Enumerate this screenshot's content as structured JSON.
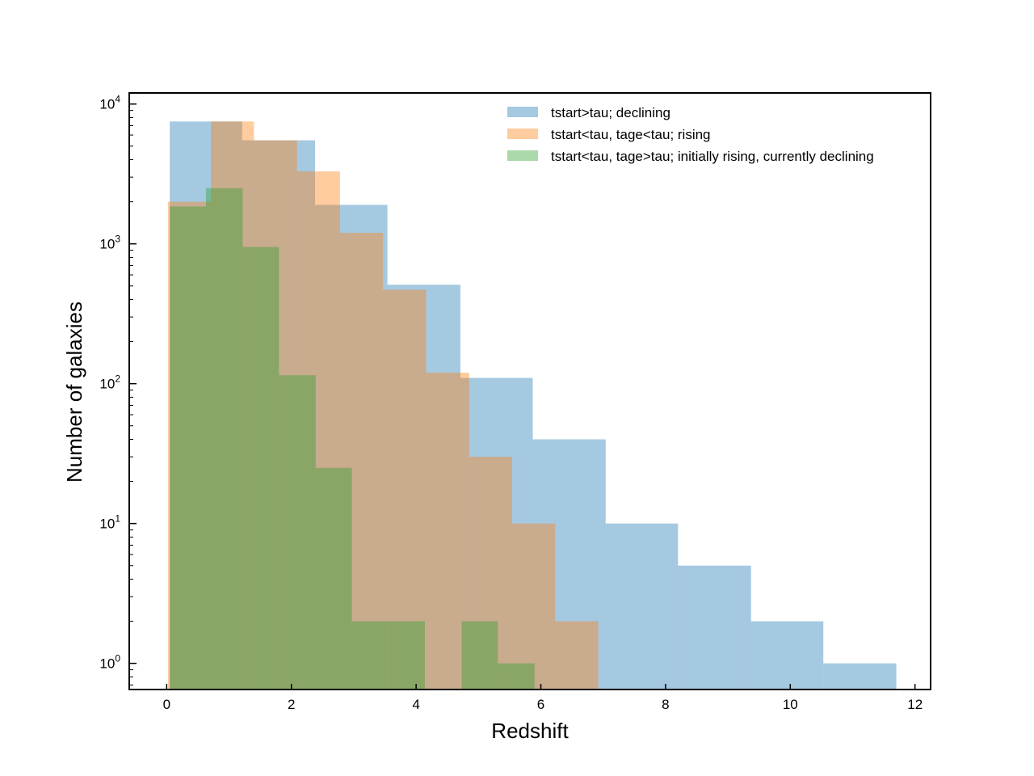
{
  "chart_data": {
    "type": "histogram",
    "xlabel": "Redshift",
    "ylabel": "Number of galaxies",
    "xlim": [
      -0.6,
      12.25
    ],
    "ylim": [
      0.65,
      12000
    ],
    "yscale": "log",
    "xticks": [
      0,
      2,
      4,
      6,
      8,
      10,
      12
    ],
    "xtick_labels": [
      "0",
      "2",
      "4",
      "6",
      "8",
      "10",
      "12"
    ],
    "yticks": [
      1,
      10,
      100,
      1000,
      10000
    ],
    "ytick_labels": [
      {
        "base": "10",
        "exp": "0"
      },
      {
        "base": "10",
        "exp": "1"
      },
      {
        "base": "10",
        "exp": "2"
      },
      {
        "base": "10",
        "exp": "3"
      },
      {
        "base": "10",
        "exp": "4"
      }
    ],
    "legend_position": "upper right",
    "series": [
      {
        "name": "tstart>tau; declining",
        "color": "#1f77b4",
        "alpha": 0.4,
        "edges": [
          0.05,
          1.21,
          2.38,
          3.54,
          4.71,
          5.87,
          7.04,
          8.2,
          9.37,
          10.53,
          11.7
        ],
        "counts": [
          7500,
          5500,
          1900,
          510,
          110,
          40,
          10,
          5,
          2,
          1
        ]
      },
      {
        "name": "tstart<tau, tage<tau; rising",
        "color": "#ff7f0e",
        "alpha": 0.4,
        "edges": [
          0.02,
          0.71,
          1.4,
          2.09,
          2.78,
          3.47,
          4.16,
          4.85,
          5.54,
          6.23,
          6.92
        ],
        "counts": [
          2000,
          7500,
          5500,
          3300,
          1200,
          470,
          120,
          30,
          10,
          2
        ]
      },
      {
        "name": "tstart<tau, tage>tau; initially rising, currently declining",
        "color": "#2ca02c",
        "alpha": 0.4,
        "edges": [
          0.05,
          0.63,
          1.22,
          1.8,
          2.39,
          2.97,
          3.56,
          4.14,
          4.73,
          5.31,
          5.9
        ],
        "counts": [
          1850,
          2500,
          950,
          115,
          25,
          2,
          2,
          0,
          2,
          1
        ]
      }
    ]
  }
}
